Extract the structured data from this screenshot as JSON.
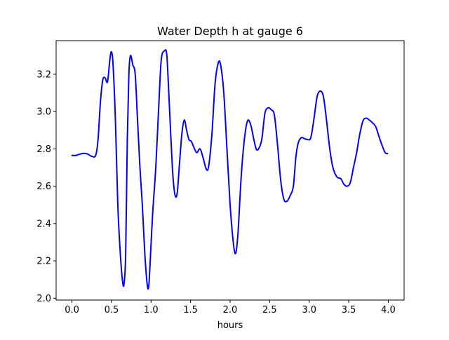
{
  "chart_data": {
    "type": "line",
    "title": "Water Depth h at gauge 6",
    "xlabel": "hours",
    "ylabel": "",
    "xlim": [
      -0.2,
      4.2
    ],
    "ylim": [
      1.99,
      3.38
    ],
    "xticks": [
      {
        "value": 0.0,
        "label": "0.0"
      },
      {
        "value": 0.5,
        "label": "0.5"
      },
      {
        "value": 1.0,
        "label": "1.0"
      },
      {
        "value": 1.5,
        "label": "1.5"
      },
      {
        "value": 2.0,
        "label": "2.0"
      },
      {
        "value": 2.5,
        "label": "2.5"
      },
      {
        "value": 3.0,
        "label": "3.0"
      },
      {
        "value": 3.5,
        "label": "3.5"
      },
      {
        "value": 4.0,
        "label": "4.0"
      }
    ],
    "yticks": [
      {
        "value": 2.0,
        "label": "2.0"
      },
      {
        "value": 2.2,
        "label": "2.2"
      },
      {
        "value": 2.4,
        "label": "2.4"
      },
      {
        "value": 2.6,
        "label": "2.6"
      },
      {
        "value": 2.8,
        "label": "2.8"
      },
      {
        "value": 3.0,
        "label": "3.0"
      },
      {
        "value": 3.2,
        "label": "3.2"
      }
    ],
    "grid": false,
    "series": [
      {
        "color": "#0000ff",
        "points": [
          [
            0.0,
            2.765
          ],
          [
            0.05,
            2.765
          ],
          [
            0.1,
            2.772
          ],
          [
            0.15,
            2.776
          ],
          [
            0.2,
            2.772
          ],
          [
            0.25,
            2.76
          ],
          [
            0.3,
            2.765
          ],
          [
            0.33,
            2.85
          ],
          [
            0.36,
            3.05
          ],
          [
            0.39,
            3.17
          ],
          [
            0.42,
            3.18
          ],
          [
            0.45,
            3.16
          ],
          [
            0.48,
            3.28
          ],
          [
            0.5,
            3.32
          ],
          [
            0.52,
            3.25
          ],
          [
            0.55,
            2.95
          ],
          [
            0.58,
            2.5
          ],
          [
            0.61,
            2.25
          ],
          [
            0.64,
            2.09
          ],
          [
            0.66,
            2.08
          ],
          [
            0.68,
            2.25
          ],
          [
            0.7,
            2.85
          ],
          [
            0.72,
            3.2
          ],
          [
            0.74,
            3.3
          ],
          [
            0.77,
            3.25
          ],
          [
            0.8,
            3.2
          ],
          [
            0.83,
            2.95
          ],
          [
            0.86,
            2.7
          ],
          [
            0.89,
            2.5
          ],
          [
            0.92,
            2.25
          ],
          [
            0.95,
            2.08
          ],
          [
            0.97,
            2.06
          ],
          [
            0.99,
            2.2
          ],
          [
            1.02,
            2.45
          ],
          [
            1.06,
            2.7
          ],
          [
            1.1,
            3.05
          ],
          [
            1.13,
            3.28
          ],
          [
            1.17,
            3.325
          ],
          [
            1.2,
            3.3
          ],
          [
            1.23,
            3.05
          ],
          [
            1.27,
            2.7
          ],
          [
            1.3,
            2.56
          ],
          [
            1.33,
            2.56
          ],
          [
            1.36,
            2.72
          ],
          [
            1.39,
            2.88
          ],
          [
            1.42,
            2.955
          ],
          [
            1.45,
            2.9
          ],
          [
            1.48,
            2.85
          ],
          [
            1.51,
            2.84
          ],
          [
            1.55,
            2.8
          ],
          [
            1.58,
            2.78
          ],
          [
            1.62,
            2.8
          ],
          [
            1.66,
            2.75
          ],
          [
            1.7,
            2.69
          ],
          [
            1.73,
            2.71
          ],
          [
            1.77,
            2.88
          ],
          [
            1.81,
            3.15
          ],
          [
            1.85,
            3.26
          ],
          [
            1.88,
            3.25
          ],
          [
            1.92,
            3.1
          ],
          [
            1.96,
            2.8
          ],
          [
            2.0,
            2.5
          ],
          [
            2.04,
            2.3
          ],
          [
            2.07,
            2.24
          ],
          [
            2.1,
            2.35
          ],
          [
            2.14,
            2.65
          ],
          [
            2.18,
            2.85
          ],
          [
            2.22,
            2.95
          ],
          [
            2.26,
            2.93
          ],
          [
            2.3,
            2.85
          ],
          [
            2.33,
            2.8
          ],
          [
            2.36,
            2.8
          ],
          [
            2.4,
            2.85
          ],
          [
            2.44,
            2.99
          ],
          [
            2.48,
            3.02
          ],
          [
            2.52,
            3.01
          ],
          [
            2.56,
            2.98
          ],
          [
            2.6,
            2.82
          ],
          [
            2.64,
            2.63
          ],
          [
            2.68,
            2.53
          ],
          [
            2.72,
            2.52
          ],
          [
            2.76,
            2.55
          ],
          [
            2.8,
            2.6
          ],
          [
            2.83,
            2.75
          ],
          [
            2.86,
            2.83
          ],
          [
            2.9,
            2.86
          ],
          [
            2.94,
            2.855
          ],
          [
            2.98,
            2.85
          ],
          [
            3.02,
            2.86
          ],
          [
            3.06,
            2.96
          ],
          [
            3.1,
            3.08
          ],
          [
            3.14,
            3.11
          ],
          [
            3.18,
            3.08
          ],
          [
            3.22,
            2.95
          ],
          [
            3.26,
            2.8
          ],
          [
            3.3,
            2.7
          ],
          [
            3.35,
            2.65
          ],
          [
            3.4,
            2.64
          ],
          [
            3.44,
            2.61
          ],
          [
            3.48,
            2.6
          ],
          [
            3.52,
            2.62
          ],
          [
            3.56,
            2.7
          ],
          [
            3.6,
            2.78
          ],
          [
            3.64,
            2.88
          ],
          [
            3.68,
            2.95
          ],
          [
            3.72,
            2.965
          ],
          [
            3.76,
            2.955
          ],
          [
            3.8,
            2.94
          ],
          [
            3.84,
            2.92
          ],
          [
            3.88,
            2.87
          ],
          [
            3.92,
            2.82
          ],
          [
            3.96,
            2.78
          ],
          [
            3.99,
            2.775
          ]
        ]
      }
    ]
  }
}
